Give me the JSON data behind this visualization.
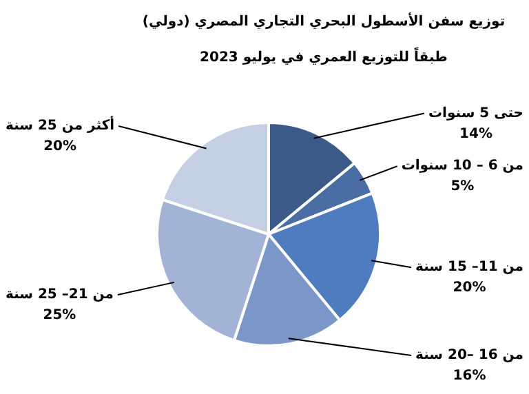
{
  "chart_data": {
    "type": "pie",
    "title": "توزيع سفن الأسطول البحري التجاري المصري (دولي)",
    "subtitle": "طبقاً للتوزيع العمري في يوليو 2023",
    "categories": [
      "حتى 5 سنوات",
      "من 6 – 10 سنوات",
      "من 11– 15 سنة",
      "من 16 –20 سنة",
      "من 21– 25 سنة",
      "أكثر من 25 سنة"
    ],
    "values": [
      14,
      5,
      20,
      16,
      25,
      20
    ],
    "value_labels": [
      "14%",
      "5%",
      "20%",
      "16%",
      "25%",
      "20%"
    ],
    "colors": [
      "#3c5a88",
      "#4a6da3",
      "#4f7cbe",
      "#7b97c9",
      "#a2b3d5",
      "#c5cfe3"
    ]
  }
}
